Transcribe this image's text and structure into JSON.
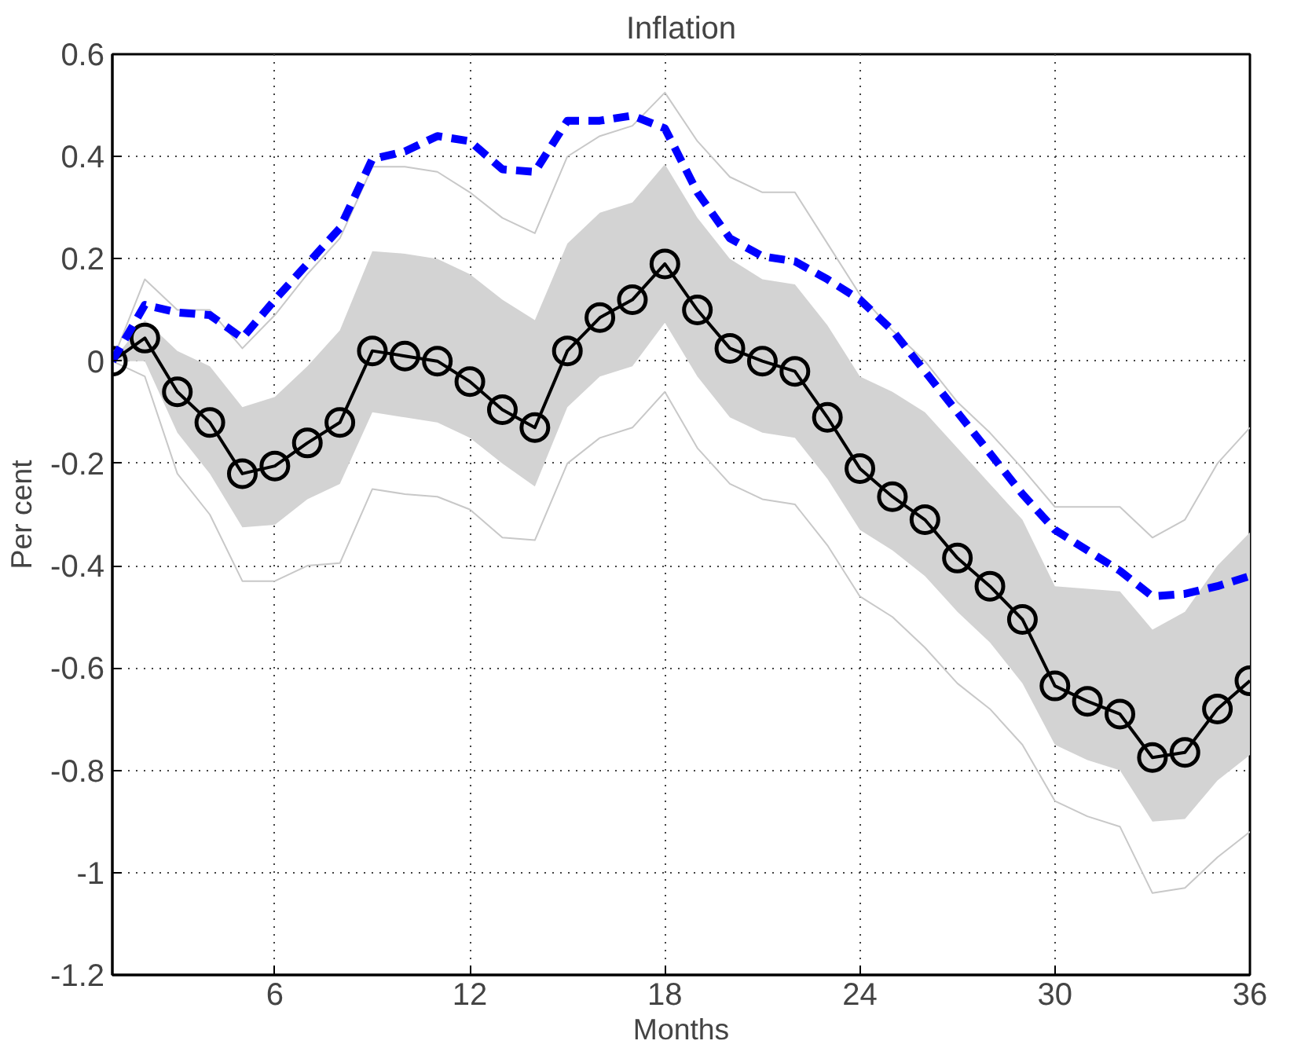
{
  "chart_data": {
    "type": "line",
    "title": "Inflation",
    "xlabel": "Months",
    "ylabel": "Per cent",
    "x": [
      1,
      2,
      3,
      4,
      5,
      6,
      7,
      8,
      9,
      10,
      11,
      12,
      13,
      14,
      15,
      16,
      17,
      18,
      19,
      20,
      21,
      22,
      23,
      24,
      25,
      26,
      27,
      28,
      29,
      30,
      31,
      32,
      33,
      34,
      35,
      36
    ],
    "xlim": [
      1,
      36
    ],
    "xticks": [
      6,
      12,
      18,
      24,
      30,
      36
    ],
    "ylim": [
      -1.2,
      0.6
    ],
    "yticks": [
      -1.2,
      -1,
      -0.8,
      -0.6,
      -0.4,
      -0.2,
      0,
      0.2,
      0.4,
      0.6
    ],
    "grid": true,
    "series": [
      {
        "color": "#c8c8c8",
        "marker": "none",
        "line_style": "solid",
        "values": [
          0,
          0.16,
          0.1,
          0.1,
          0.025,
          0.09,
          0.17,
          0.24,
          0.38,
          0.38,
          0.37,
          0.33,
          0.28,
          0.25,
          0.4,
          0.44,
          0.46,
          0.525,
          0.43,
          0.36,
          0.33,
          0.33,
          0.23,
          0.13,
          0.06,
          0.0,
          -0.08,
          -0.14,
          -0.21,
          -0.285,
          -0.285,
          -0.285,
          -0.345,
          -0.31,
          -0.2,
          -0.13
        ]
      },
      {
        "color": "#c8c8c8",
        "marker": "none",
        "line_style": "solid",
        "values": [
          0,
          -0.03,
          -0.22,
          -0.3,
          -0.43,
          -0.43,
          -0.4,
          -0.395,
          -0.25,
          -0.26,
          -0.265,
          -0.29,
          -0.345,
          -0.35,
          -0.2,
          -0.15,
          -0.13,
          -0.06,
          -0.17,
          -0.24,
          -0.27,
          -0.28,
          -0.36,
          -0.46,
          -0.5,
          -0.56,
          -0.63,
          -0.68,
          -0.75,
          -0.86,
          -0.89,
          -0.91,
          -1.04,
          -1.03,
          -0.97,
          -0.92
        ]
      },
      {
        "color": "#000000",
        "marker": "circle",
        "line_style": "solid",
        "values": [
          0,
          0.045,
          -0.06,
          -0.12,
          -0.22,
          -0.205,
          -0.16,
          -0.12,
          0.02,
          0.01,
          0.0,
          -0.04,
          -0.095,
          -0.13,
          0.02,
          0.085,
          0.12,
          0.19,
          0.1,
          0.025,
          0.0,
          -0.02,
          -0.11,
          -0.21,
          -0.265,
          -0.31,
          -0.385,
          -0.44,
          -0.505,
          -0.635,
          -0.665,
          -0.69,
          -0.775,
          -0.765,
          -0.68,
          -0.625
        ],
        "upper": [
          0,
          0.08,
          0.02,
          -0.01,
          -0.09,
          -0.07,
          -0.01,
          0.06,
          0.215,
          0.21,
          0.2,
          0.17,
          0.12,
          0.08,
          0.23,
          0.29,
          0.31,
          0.385,
          0.28,
          0.2,
          0.16,
          0.15,
          0.07,
          -0.03,
          -0.06,
          -0.1,
          -0.17,
          -0.24,
          -0.31,
          -0.44,
          -0.445,
          -0.45,
          -0.525,
          -0.49,
          -0.4,
          -0.335
        ],
        "lower": [
          0,
          0.0,
          -0.14,
          -0.22,
          -0.325,
          -0.32,
          -0.27,
          -0.24,
          -0.1,
          -0.11,
          -0.12,
          -0.15,
          -0.2,
          -0.245,
          -0.09,
          -0.03,
          -0.01,
          0.075,
          -0.03,
          -0.11,
          -0.14,
          -0.15,
          -0.23,
          -0.33,
          -0.37,
          -0.42,
          -0.49,
          -0.55,
          -0.63,
          -0.75,
          -0.78,
          -0.8,
          -0.9,
          -0.895,
          -0.82,
          -0.77
        ]
      },
      {
        "color": "#0000ff",
        "marker": "none",
        "line_style": "dashed",
        "values": [
          0,
          0.11,
          0.095,
          0.09,
          0.045,
          0.12,
          0.19,
          0.26,
          0.395,
          0.41,
          0.44,
          0.43,
          0.375,
          0.37,
          0.47,
          0.47,
          0.48,
          0.455,
          0.33,
          0.24,
          0.205,
          0.195,
          0.16,
          0.12,
          0.06,
          -0.02,
          -0.1,
          -0.18,
          -0.26,
          -0.33,
          -0.37,
          -0.41,
          -0.46,
          -0.455,
          -0.44,
          -0.42
        ]
      }
    ]
  }
}
